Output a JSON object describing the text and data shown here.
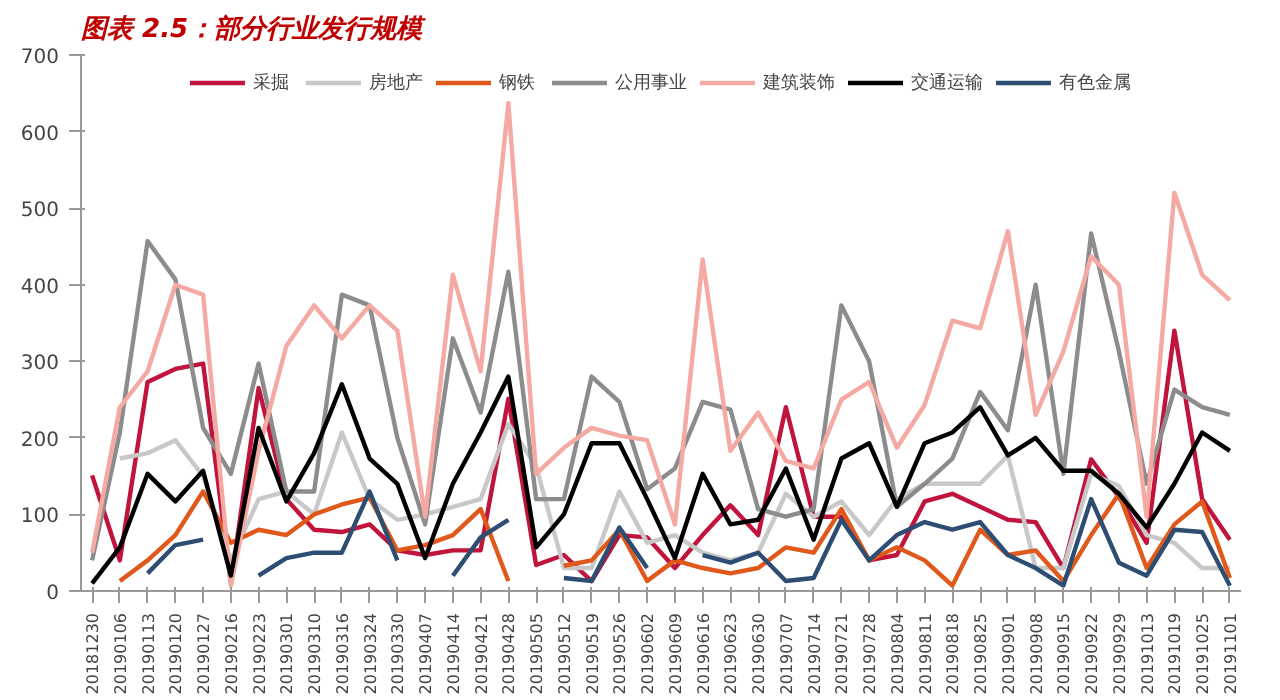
{
  "chart_data": {
    "type": "line",
    "title": "图表 2.5：部分行业发行规模",
    "categories": [
      "20181230",
      "20190106",
      "20190113",
      "20190120",
      "20190127",
      "20190216",
      "20190223",
      "20190301",
      "20190310",
      "20190316",
      "20190324",
      "20190330",
      "20190407",
      "20190414",
      "20190421",
      "20190428",
      "20190505",
      "20190512",
      "20190519",
      "20190526",
      "20190602",
      "20190609",
      "20190616",
      "20190623",
      "20190630",
      "20190707",
      "20190714",
      "20190721",
      "20190728",
      "20190804",
      "20190811",
      "20190818",
      "20190825",
      "20190901",
      "20190908",
      "20190915",
      "20190922",
      "20190929",
      "20191013",
      "20191019",
      "20191025",
      "20191101"
    ],
    "series": [
      {
        "name": "采掘",
        "color": "#c0143c",
        "values": [
          151,
          40,
          273,
          290,
          297,
          10,
          265,
          120,
          80,
          77,
          87,
          53,
          47,
          53,
          53,
          251,
          34,
          47,
          13,
          73,
          70,
          30,
          73,
          112,
          73,
          240,
          97,
          97,
          40,
          47,
          117,
          127,
          110,
          93,
          90,
          30,
          172,
          123,
          63,
          340,
          120,
          67
        ]
      },
      {
        "name": "房地产",
        "color": "#c8c8c8",
        "values": [
          null,
          173,
          180,
          197,
          150,
          40,
          120,
          130,
          100,
          207,
          120,
          93,
          100,
          110,
          120,
          218,
          163,
          30,
          30,
          130,
          63,
          73,
          50,
          40,
          50,
          127,
          97,
          117,
          73,
          120,
          140,
          140,
          140,
          177,
          30,
          30,
          153,
          137,
          73,
          63,
          30,
          30
        ]
      },
      {
        "name": "钢铁",
        "color": "#e0581a",
        "values": [
          null,
          13,
          40,
          73,
          130,
          63,
          80,
          73,
          100,
          113,
          122,
          53,
          60,
          73,
          107,
          13,
          null,
          33,
          40,
          80,
          13,
          40,
          30,
          23,
          30,
          57,
          50,
          107,
          40,
          57,
          40,
          7,
          80,
          47,
          53,
          13,
          73,
          127,
          30,
          87,
          117,
          17
        ]
      },
      {
        "name": "公用事业",
        "color": "#8c8c8c",
        "values": [
          40,
          207,
          457,
          407,
          213,
          153,
          297,
          130,
          130,
          387,
          373,
          200,
          87,
          330,
          233,
          417,
          120,
          120,
          280,
          247,
          133,
          160,
          247,
          237,
          107,
          97,
          107,
          373,
          300,
          110,
          140,
          173,
          260,
          210,
          400,
          153,
          467,
          313,
          140,
          263,
          240,
          230
        ]
      },
      {
        "name": "建筑装饰",
        "color": "#f4a9a2",
        "values": [
          50,
          240,
          287,
          400,
          387,
          7,
          183,
          320,
          373,
          330,
          373,
          340,
          97,
          413,
          287,
          637,
          153,
          187,
          213,
          203,
          197,
          87,
          433,
          183,
          233,
          170,
          160,
          250,
          273,
          187,
          243,
          353,
          343,
          470,
          230,
          313,
          437,
          400,
          97,
          520,
          413,
          380
        ]
      },
      {
        "name": "交通运输",
        "color": "#000000",
        "values": [
          10,
          57,
          153,
          117,
          157,
          20,
          213,
          117,
          180,
          270,
          173,
          140,
          43,
          140,
          207,
          280,
          57,
          100,
          193,
          193,
          120,
          43,
          153,
          87,
          93,
          160,
          67,
          173,
          193,
          110,
          193,
          207,
          240,
          177,
          200,
          157,
          157,
          127,
          83,
          140,
          207,
          183
        ]
      },
      {
        "name": "有色金属",
        "color": "#2e4d73",
        "values": [
          null,
          null,
          23,
          60,
          67,
          null,
          20,
          43,
          50,
          50,
          130,
          40,
          null,
          20,
          70,
          93,
          null,
          17,
          13,
          83,
          30,
          null,
          47,
          37,
          50,
          13,
          17,
          93,
          40,
          73,
          90,
          80,
          90,
          47,
          30,
          7,
          120,
          37,
          20,
          80,
          77,
          7
        ]
      }
    ],
    "ylim": [
      0,
      700
    ],
    "yticks": [
      0,
      100,
      200,
      300,
      400,
      500,
      600,
      700
    ],
    "grid": false,
    "legend": "top"
  }
}
